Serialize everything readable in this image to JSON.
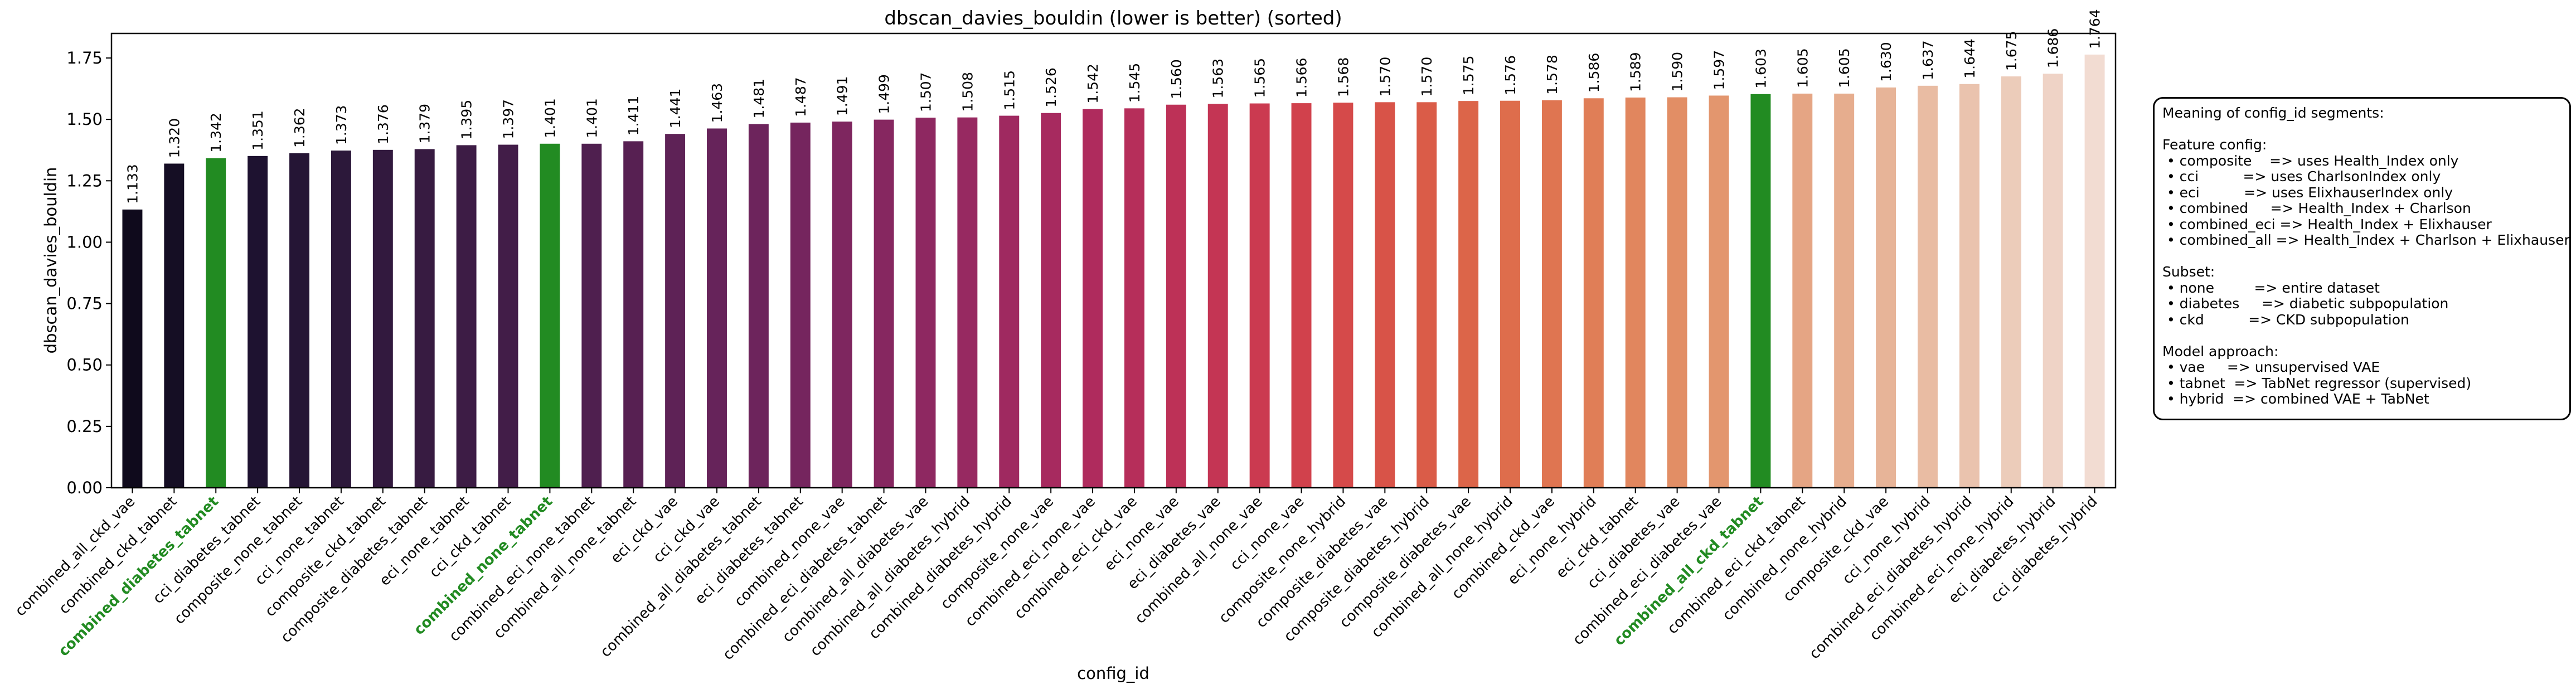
{
  "chart_data": {
    "type": "bar",
    "title": "dbscan_davies_bouldin (lower is better) (sorted)",
    "xlabel": "config_id",
    "ylabel": "dbscan_davies_bouldin",
    "ylim": [
      0,
      1.85
    ],
    "yticks": [
      "0.00",
      "0.25",
      "0.50",
      "0.75",
      "1.00",
      "1.25",
      "1.50",
      "1.75"
    ],
    "grid": false,
    "highlight_color": "#228b22",
    "categories": [
      "combined_all_ckd_vae",
      "combined_ckd_tabnet",
      "combined_diabetes_tabnet",
      "cci_diabetes_tabnet",
      "composite_none_tabnet",
      "cci_none_tabnet",
      "composite_ckd_tabnet",
      "composite_diabetes_tabnet",
      "eci_none_tabnet",
      "cci_ckd_tabnet",
      "combined_none_tabnet",
      "combined_eci_none_tabnet",
      "combined_all_none_tabnet",
      "eci_ckd_vae",
      "cci_ckd_vae",
      "combined_all_diabetes_tabnet",
      "eci_diabetes_tabnet",
      "combined_none_vae",
      "combined_eci_diabetes_tabnet",
      "combined_all_diabetes_vae",
      "combined_all_diabetes_hybrid",
      "combined_diabetes_hybrid",
      "composite_none_vae",
      "combined_eci_none_vae",
      "combined_eci_ckd_vae",
      "eci_none_vae",
      "eci_diabetes_vae",
      "combined_all_none_vae",
      "cci_none_vae",
      "composite_none_hybrid",
      "composite_diabetes_vae",
      "composite_diabetes_hybrid",
      "composite_diabetes_vae",
      "combined_all_none_hybrid",
      "combined_ckd_vae",
      "eci_none_hybrid",
      "eci_ckd_tabnet",
      "cci_diabetes_vae",
      "combined_eci_diabetes_vae",
      "combined_all_ckd_tabnet",
      "combined_eci_ckd_tabnet",
      "combined_none_hybrid",
      "composite_ckd_vae",
      "cci_none_hybrid",
      "combined_eci_diabetes_hybrid",
      "combined_eci_none_hybrid",
      "eci_diabetes_hybrid",
      "cci_diabetes_hybrid"
    ],
    "values": [
      1.133,
      1.32,
      1.342,
      1.351,
      1.362,
      1.373,
      1.376,
      1.379,
      1.395,
      1.397,
      1.401,
      1.401,
      1.411,
      1.441,
      1.463,
      1.481,
      1.487,
      1.491,
      1.499,
      1.507,
      1.508,
      1.515,
      1.526,
      1.542,
      1.545,
      1.56,
      1.563,
      1.565,
      1.566,
      1.568,
      1.57,
      1.57,
      1.575,
      1.576,
      1.578,
      1.586,
      1.589,
      1.59,
      1.597,
      1.603,
      1.605,
      1.605,
      1.63,
      1.637,
      1.644,
      1.675,
      1.686,
      1.764
    ],
    "value_labels": [
      "1.133",
      "1.320",
      "1.342",
      "1.351",
      "1.362",
      "1.373",
      "1.376",
      "1.379",
      "1.395",
      "1.397",
      "1.401",
      "1.401",
      "1.411",
      "1.441",
      "1.463",
      "1.481",
      "1.487",
      "1.491",
      "1.499",
      "1.507",
      "1.508",
      "1.515",
      "1.526",
      "1.542",
      "1.545",
      "1.560",
      "1.563",
      "1.565",
      "1.566",
      "1.568",
      "1.570",
      "1.570",
      "1.575",
      "1.576",
      "1.578",
      "1.586",
      "1.589",
      "1.590",
      "1.597",
      "1.603",
      "1.605",
      "1.605",
      "1.630",
      "1.637",
      "1.644",
      "1.675",
      "1.686",
      "1.764"
    ],
    "highlighted": [
      2,
      10,
      39
    ],
    "colors": [
      "#0f0a1c",
      "#150e24",
      "#228b22",
      "#1e1230",
      "#251535",
      "#2c183a",
      "#32193e",
      "#371b41",
      "#3d1c45",
      "#421d48",
      "#228b22",
      "#4f1f4f",
      "#572052",
      "#5e2256",
      "#66235a",
      "#6d245c",
      "#75255e",
      "#7e265f",
      "#862760",
      "#8e2861",
      "#972961",
      "#9f2960",
      "#a72a5f",
      "#af2b5d",
      "#b62e5a",
      "#bd3157",
      "#c43554",
      "#cb3a50",
      "#d1414c",
      "#d54a4a",
      "#d85348",
      "#da5c48",
      "#dc6549",
      "#de6d4c",
      "#df7551",
      "#e07e57",
      "#e1865e",
      "#e28e65",
      "#e3966e",
      "#228b22",
      "#e5a584",
      "#e6ad8e",
      "#e7b498",
      "#e9bca3",
      "#eac3ae",
      "#ecccba",
      "#efd3c6",
      "#f2dcd2"
    ]
  },
  "legend": {
    "lines": [
      "Meaning of config_id segments:",
      "",
      "Feature config:",
      " • composite    => uses Health_Index only",
      " • cci          => uses CharlsonIndex only",
      " • eci          => uses ElixhauserIndex only",
      " • combined     => Health_Index + Charlson",
      " • combined_eci => Health_Index + Elixhauser",
      " • combined_all => Health_Index + Charlson + Elixhauser",
      "",
      "Subset:",
      " • none         => entire dataset",
      " • diabetes     => diabetic subpopulation",
      " • ckd          => CKD subpopulation",
      "",
      "Model approach:",
      " • vae     => unsupervised VAE",
      " • tabnet  => TabNet regressor (supervised)",
      " • hybrid  => combined VAE + TabNet"
    ]
  }
}
